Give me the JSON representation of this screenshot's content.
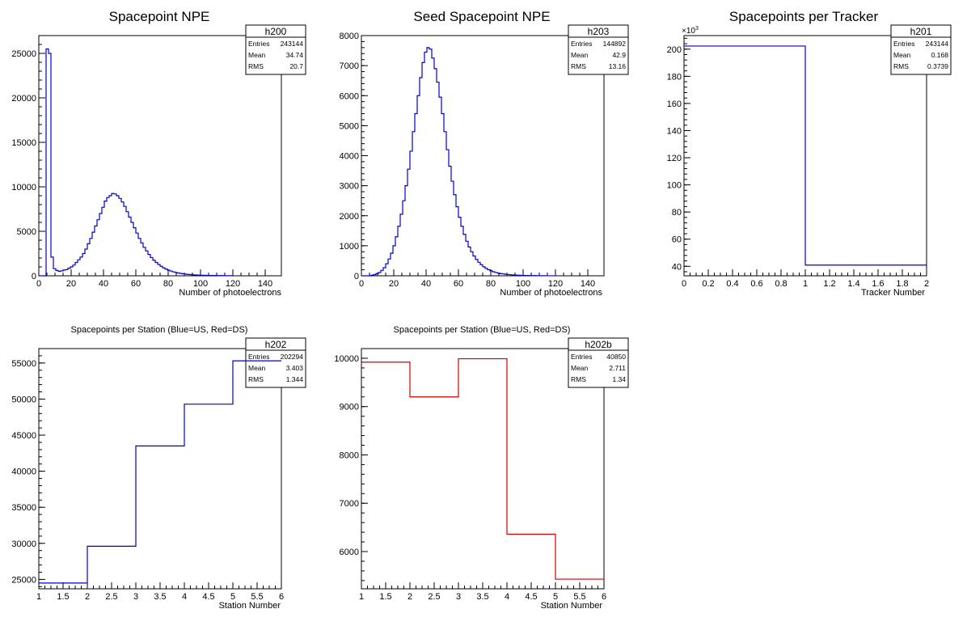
{
  "colors": {
    "blue": "#0000cc",
    "red": "#cc0000",
    "frame": "#000000",
    "background": "#ffffff"
  },
  "chart_data": [
    {
      "id": "h200",
      "type": "histogram",
      "title": "Spacepoint NPE",
      "xlabel": "Number of photoelectrons",
      "ylabel": "",
      "xlim": [
        0,
        150
      ],
      "ylim": [
        0,
        27000
      ],
      "xticks": [
        0,
        20,
        40,
        60,
        80,
        100,
        120,
        140
      ],
      "yticks": [
        0,
        5000,
        10000,
        15000,
        20000,
        25000
      ],
      "bin_width": 1.5,
      "line_color": "blue",
      "stats_box_at": "top-right",
      "stats": {
        "name": "h200",
        "rows": [
          [
            "Entries",
            "243144"
          ],
          [
            "Mean",
            "34.74"
          ],
          [
            "RMS",
            "20.7"
          ]
        ]
      },
      "values": [
        0,
        0,
        0,
        25500,
        25000,
        2100,
        800,
        600,
        500,
        550,
        650,
        700,
        850,
        1000,
        1200,
        1500,
        1800,
        2100,
        2500,
        3000,
        3600,
        4200,
        4900,
        5600,
        6300,
        7000,
        7700,
        8400,
        8800,
        9000,
        9250,
        9200,
        9000,
        8700,
        8300,
        7800,
        7200,
        6600,
        6000,
        5400,
        4800,
        4200,
        3700,
        3200,
        2800,
        2400,
        2050,
        1750,
        1500,
        1270,
        1070,
        900,
        760,
        640,
        540,
        450,
        380,
        320,
        270,
        225,
        190,
        160,
        135,
        115,
        98,
        84,
        72,
        62,
        54,
        47,
        41,
        36,
        31,
        27,
        24,
        21,
        18,
        16,
        14,
        12
      ]
    },
    {
      "id": "h203",
      "type": "histogram",
      "title": "Seed Spacepoint NPE",
      "xlabel": "Number of photoelectrons",
      "ylabel": "",
      "xlim": [
        0,
        150
      ],
      "ylim": [
        0,
        8000
      ],
      "xticks": [
        0,
        20,
        40,
        60,
        80,
        100,
        120,
        140
      ],
      "yticks": [
        0,
        1000,
        2000,
        3000,
        4000,
        5000,
        6000,
        7000,
        8000
      ],
      "bin_width": 1.5,
      "line_color": "blue",
      "stats_box_at": "top-right",
      "stats": {
        "name": "h203",
        "rows": [
          [
            "Entries",
            "144892"
          ],
          [
            "Mean",
            "42.9"
          ],
          [
            "RMS",
            "13.16"
          ]
        ]
      },
      "values": [
        0,
        0,
        0,
        0,
        20,
        40,
        70,
        110,
        180,
        270,
        400,
        560,
        750,
        1000,
        1300,
        1650,
        2050,
        2500,
        3000,
        3550,
        4150,
        4800,
        5400,
        6000,
        6600,
        7100,
        7450,
        7600,
        7550,
        7250,
        6900,
        6450,
        5950,
        5400,
        4800,
        4200,
        3650,
        3150,
        2700,
        2300,
        1950,
        1650,
        1380,
        1150,
        960,
        800,
        660,
        545,
        450,
        370,
        300,
        245,
        200,
        165,
        135,
        110,
        90,
        75,
        62,
        50,
        42,
        35,
        29,
        24,
        20,
        17,
        14,
        12,
        10,
        8,
        7,
        6,
        5,
        4,
        3,
        3,
        2,
        2,
        1,
        1
      ]
    },
    {
      "id": "h201",
      "type": "histogram",
      "title": "Spacepoints per Tracker",
      "xlabel": "Tracker Number",
      "ylabel": "",
      "y_multiplier": "×10",
      "y_multiplier_exp": "3",
      "xlim": [
        0,
        2
      ],
      "ylim": [
        33,
        210
      ],
      "xticks": [
        0,
        0.2,
        0.4,
        0.6,
        0.8,
        1,
        1.2,
        1.4,
        1.6,
        1.8,
        2
      ],
      "xtick_labels": [
        "0",
        "0.2",
        "0.4",
        "0.6",
        "0.8",
        "1",
        "1.2",
        "1.4",
        "1.6",
        "1.8",
        "2"
      ],
      "yticks": [
        40,
        60,
        80,
        100,
        120,
        140,
        160,
        180,
        200
      ],
      "bin_edges": [
        0,
        1,
        2
      ],
      "values": [
        202.3,
        40.9
      ],
      "line_color": "blue",
      "stats_box_at": "top-right",
      "stats": {
        "name": "h201",
        "rows": [
          [
            "Entries",
            "243144"
          ],
          [
            "Mean",
            "0.168"
          ],
          [
            "RMS",
            "0.3739"
          ]
        ]
      }
    },
    {
      "id": "h202",
      "type": "histogram",
      "title": "Spacepoints per Station (Blue=US, Red=DS)",
      "xlabel": "Station Number",
      "ylabel": "",
      "xlim": [
        1,
        6
      ],
      "ylim": [
        23700,
        57000
      ],
      "xticks": [
        1,
        1.5,
        2,
        2.5,
        3,
        3.5,
        4,
        4.5,
        5,
        5.5,
        6
      ],
      "xtick_labels": [
        "1",
        "1.5",
        "2",
        "2.5",
        "3",
        "3.5",
        "4",
        "4.5",
        "5",
        "5.5",
        "6"
      ],
      "yticks": [
        25000,
        30000,
        35000,
        40000,
        45000,
        50000,
        55000
      ],
      "bin_edges": [
        1,
        2,
        3,
        4,
        5,
        6
      ],
      "values": [
        24500,
        29600,
        43500,
        49300,
        55300
      ],
      "line_color": "blue",
      "stats_box_at": "top-right",
      "stats": {
        "name": "h202",
        "rows": [
          [
            "Entries",
            "202294"
          ],
          [
            "Mean",
            "3.403"
          ],
          [
            "RMS",
            "1.344"
          ]
        ]
      }
    },
    {
      "id": "h202b",
      "type": "histogram",
      "title": "Spacepoints per Station (Blue=US, Red=DS)",
      "xlabel": "Station Number",
      "ylabel": "",
      "xlim": [
        1,
        6
      ],
      "ylim": [
        5230,
        10200
      ],
      "xticks": [
        1,
        1.5,
        2,
        2.5,
        3,
        3.5,
        4,
        4.5,
        5,
        5.5,
        6
      ],
      "xtick_labels": [
        "1",
        "1.5",
        "2",
        "2.5",
        "3",
        "3.5",
        "4",
        "4.5",
        "5",
        "5.5",
        "6"
      ],
      "yticks": [
        6000,
        7000,
        8000,
        9000,
        10000
      ],
      "bin_edges": [
        1,
        2,
        3,
        4,
        5,
        6
      ],
      "values": [
        9920,
        9200,
        9990,
        6360,
        5430
      ],
      "line_color": "red",
      "stats_box_at": "top-right",
      "stats": {
        "name": "h202b",
        "rows": [
          [
            "Entries",
            "40850"
          ],
          [
            "Mean",
            "2.711"
          ],
          [
            "RMS",
            "1.34"
          ]
        ]
      }
    }
  ]
}
